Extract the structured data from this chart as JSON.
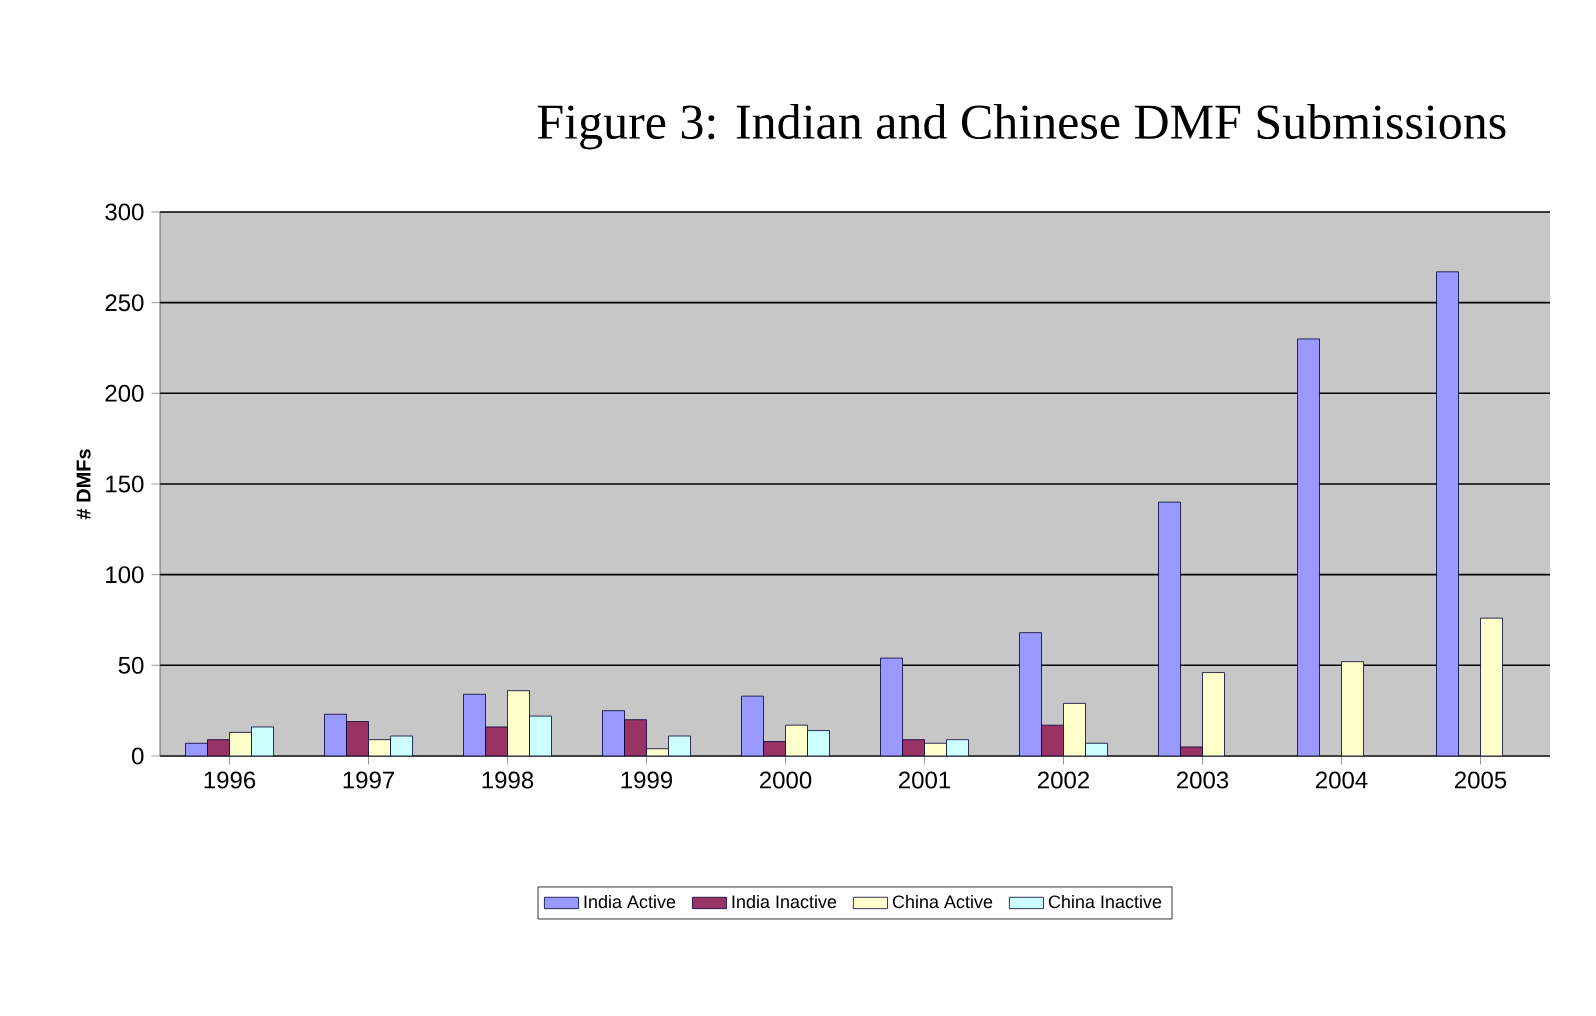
{
  "chart_data": {
    "type": "bar",
    "title": "Figure 3:  Indian and Chinese DMF Submissions",
    "ylabel": "# DMFs",
    "categories": [
      "1996",
      "1997",
      "1998",
      "1999",
      "2000",
      "2001",
      "2002",
      "2003",
      "2004",
      "2005"
    ],
    "series": [
      {
        "name": "India Active",
        "color": "#9999ff",
        "values": [
          7,
          23,
          34,
          25,
          33,
          54,
          68,
          140,
          230,
          267
        ]
      },
      {
        "name": "India Inactive",
        "color": "#993366",
        "values": [
          9,
          19,
          16,
          20,
          8,
          9,
          17,
          5,
          null,
          null
        ]
      },
      {
        "name": "China Active",
        "color": "#ffffcc",
        "values": [
          13,
          9,
          36,
          4,
          17,
          7,
          29,
          46,
          52,
          76
        ]
      },
      {
        "name": "China Inactive",
        "color": "#ccffff",
        "values": [
          16,
          11,
          22,
          11,
          14,
          9,
          7,
          null,
          null,
          null
        ]
      }
    ],
    "ylim": [
      0,
      300
    ],
    "yticks": [
      0,
      50,
      100,
      150,
      200,
      250,
      300
    ],
    "grid": "y",
    "legend": "bottom"
  }
}
